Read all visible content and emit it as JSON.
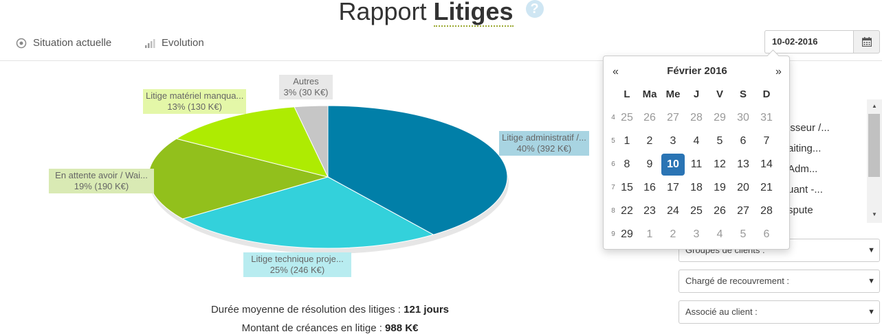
{
  "header": {
    "title_light": "Rapport",
    "title_bold": "Litiges",
    "help_icon": "?"
  },
  "tabs": [
    {
      "label": "Situation actuelle",
      "icon": "target-icon"
    },
    {
      "label": "Evolution",
      "icon": "signal-bars-icon"
    }
  ],
  "date_picker": {
    "value": "10-02-2016",
    "icon": "calendar-icon",
    "month_label": "Février 2016",
    "prev": "«",
    "next": "»",
    "weekdays": [
      "L",
      "Ma",
      "Me",
      "J",
      "V",
      "S",
      "D"
    ],
    "weeks": [
      {
        "num": "4",
        "days": [
          {
            "d": "25",
            "muted": true
          },
          {
            "d": "26",
            "muted": true
          },
          {
            "d": "27",
            "muted": true
          },
          {
            "d": "28",
            "muted": true
          },
          {
            "d": "29",
            "muted": true
          },
          {
            "d": "30",
            "muted": true
          },
          {
            "d": "31",
            "muted": true
          }
        ]
      },
      {
        "num": "5",
        "days": [
          {
            "d": "1"
          },
          {
            "d": "2"
          },
          {
            "d": "3"
          },
          {
            "d": "4"
          },
          {
            "d": "5"
          },
          {
            "d": "6"
          },
          {
            "d": "7"
          }
        ]
      },
      {
        "num": "6",
        "days": [
          {
            "d": "8"
          },
          {
            "d": "9"
          },
          {
            "d": "10",
            "active": true
          },
          {
            "d": "11"
          },
          {
            "d": "12"
          },
          {
            "d": "13"
          },
          {
            "d": "14"
          }
        ]
      },
      {
        "num": "7",
        "days": [
          {
            "d": "15"
          },
          {
            "d": "16"
          },
          {
            "d": "17"
          },
          {
            "d": "18"
          },
          {
            "d": "19"
          },
          {
            "d": "20"
          },
          {
            "d": "21"
          }
        ]
      },
      {
        "num": "8",
        "days": [
          {
            "d": "22"
          },
          {
            "d": "23"
          },
          {
            "d": "24"
          },
          {
            "d": "25"
          },
          {
            "d": "26"
          },
          {
            "d": "27"
          },
          {
            "d": "28"
          }
        ]
      },
      {
        "num": "9",
        "days": [
          {
            "d": "29"
          },
          {
            "d": "1",
            "muted": true
          },
          {
            "d": "2",
            "muted": true
          },
          {
            "d": "3",
            "muted": true
          },
          {
            "d": "4",
            "muted": true
          },
          {
            "d": "5",
            "muted": true
          },
          {
            "d": "6",
            "muted": true
          }
        ]
      }
    ]
  },
  "chart_data": {
    "type": "pie",
    "slices": [
      {
        "name": "Litige administratif /...",
        "percent": 40,
        "value_label": "40% (392 K€)",
        "color": "#017fa8"
      },
      {
        "name": "Litige technique proje...",
        "percent": 25,
        "value_label": "25% (246 K€)",
        "color": "#33d1db"
      },
      {
        "name": "En attente avoir / Wai...",
        "percent": 19,
        "value_label": "19% (190 K€)",
        "color": "#92c01c"
      },
      {
        "name": "Litige matériel manqua...",
        "percent": 13,
        "value_label": "13% (130 K€)",
        "color": "#aeeb02"
      },
      {
        "name": "Autres",
        "percent": 3,
        "value_label": "3% (30 K€)",
        "color": "#c6c6c6"
      }
    ]
  },
  "stats": {
    "duration_label": "Durée moyenne de résolution des litiges : ",
    "duration_value": "121 jours",
    "amount_label": "Montant de créances en litige : ",
    "amount_value": "988 K€"
  },
  "filter_list": {
    "items": [
      "isseur /...",
      "aiting...",
      "Adm...",
      "uant -...",
      "spute"
    ]
  },
  "dropdowns": [
    {
      "label": "Groupes de clients :"
    },
    {
      "label": "Chargé de recouvrement :"
    },
    {
      "label": "Associé au client :"
    }
  ]
}
